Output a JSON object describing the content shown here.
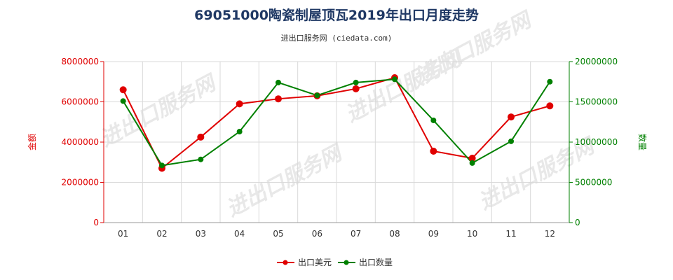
{
  "chart_data": {
    "type": "line",
    "title": "69051000陶瓷制屋顶瓦2019年出口月度走势",
    "subtitle": "进出口服务网 (ciedata.com)",
    "categories": [
      "01",
      "02",
      "03",
      "04",
      "05",
      "06",
      "07",
      "08",
      "09",
      "10",
      "11",
      "12"
    ],
    "ylabel_left": "金额",
    "ylabel_right": "数量",
    "ylim_left": [
      0,
      8000000
    ],
    "ylim_right": [
      0,
      20000000
    ],
    "yticks_left": [
      "0",
      "2000000",
      "4000000",
      "6000000",
      "8000000"
    ],
    "yticks_right": [
      "0",
      "5000000",
      "10000000",
      "15000000",
      "20000000"
    ],
    "series": [
      {
        "name": "出口美元",
        "axis": "left",
        "color": "#e00000",
        "values": [
          6600000,
          2700000,
          4250000,
          5900000,
          6150000,
          6300000,
          6650000,
          7200000,
          3550000,
          3200000,
          5250000,
          5800000
        ]
      },
      {
        "name": "出口数量",
        "axis": "right",
        "color": "#008000",
        "values": [
          15100000,
          7100000,
          7850000,
          11300000,
          17400000,
          15800000,
          17400000,
          17800000,
          12700000,
          7400000,
          10100000,
          17500000
        ]
      }
    ],
    "grid": true,
    "legend_position": "bottom-center"
  },
  "watermark": "进出口服务网"
}
